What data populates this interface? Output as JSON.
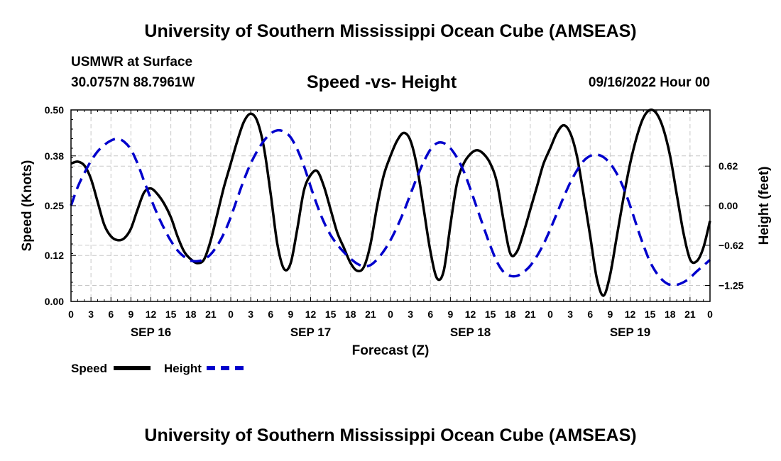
{
  "header": {
    "title": "University of Southern Mississippi Ocean Cube (AMSEAS)",
    "station": "USMWR at Surface",
    "coords": "30.0757N  88.7961W",
    "chart_title": "Speed -vs- Height",
    "datetime": "09/16/2022 Hour 00"
  },
  "footer": {
    "title": "University of Southern Mississippi Ocean Cube (AMSEAS)"
  },
  "legend": {
    "speed_label": "Speed",
    "height_label": "Height"
  },
  "colors": {
    "speed": "#000000",
    "height": "#0000cc",
    "grid": "#c8c8c8"
  },
  "chart_data": {
    "type": "line",
    "title": "Speed -vs- Height",
    "xlabel": "Forecast (Z)",
    "ylabel_left": "Speed (Knots)",
    "ylabel_right": "Height (feet)",
    "x_range_hours": [
      0,
      96
    ],
    "x_tick_hours": [
      0,
      3,
      6,
      9,
      12,
      15,
      18,
      21,
      24,
      27,
      30,
      33,
      36,
      39,
      42,
      45,
      48,
      51,
      54,
      57,
      60,
      63,
      66,
      69,
      72,
      75,
      78,
      81,
      84,
      87,
      90,
      93,
      96
    ],
    "x_tick_labels": [
      "0",
      "3",
      "6",
      "9",
      "12",
      "15",
      "18",
      "21",
      "0",
      "3",
      "6",
      "9",
      "12",
      "15",
      "18",
      "21",
      "0",
      "3",
      "6",
      "9",
      "12",
      "15",
      "18",
      "21",
      "0",
      "3",
      "6",
      "9",
      "12",
      "15",
      "18",
      "21",
      "0"
    ],
    "date_labels": [
      {
        "label": "SEP 16",
        "hour": 12
      },
      {
        "label": "SEP 17",
        "hour": 36
      },
      {
        "label": "SEP 18",
        "hour": 60
      },
      {
        "label": "SEP 19",
        "hour": 84
      }
    ],
    "ylim_left": [
      0,
      0.5
    ],
    "y_ticks_left": [
      0.0,
      0.12,
      0.25,
      0.38,
      0.5
    ],
    "y_tick_labels_left": [
      "0.00",
      "0.12",
      "0.25",
      "0.38",
      "0.50"
    ],
    "ylim_right": [
      -1.5,
      1.5
    ],
    "y_ticks_right": [
      -1.25,
      -0.62,
      0.0,
      0.62
    ],
    "y_tick_labels_right": [
      "−1.25",
      "−0.62",
      "0.00",
      "0.62"
    ],
    "series": [
      {
        "name": "Speed",
        "axis": "left",
        "style": "solid",
        "x": [
          0,
          1,
          2,
          3,
          4,
          5,
          6,
          7,
          8,
          9,
          10,
          11,
          12,
          13,
          14,
          15,
          16,
          17,
          18,
          19,
          20,
          21,
          22,
          23,
          24,
          25,
          26,
          27,
          28,
          29,
          30,
          31,
          32,
          33,
          34,
          35,
          36,
          37,
          38,
          39,
          40,
          41,
          42,
          43,
          44,
          45,
          46,
          47,
          48,
          49,
          50,
          51,
          52,
          53,
          54,
          55,
          56,
          57,
          58,
          59,
          60,
          61,
          62,
          63,
          64,
          65,
          66,
          67,
          68,
          69,
          70,
          71,
          72,
          73,
          74,
          75,
          76,
          77,
          78,
          79,
          80,
          81,
          82,
          83,
          84,
          85,
          86,
          87,
          88,
          89,
          90,
          91,
          92,
          93,
          94,
          95,
          96
        ],
        "values": [
          0.36,
          0.365,
          0.355,
          0.32,
          0.26,
          0.2,
          0.17,
          0.16,
          0.165,
          0.19,
          0.24,
          0.285,
          0.295,
          0.28,
          0.255,
          0.22,
          0.17,
          0.13,
          0.11,
          0.1,
          0.11,
          0.16,
          0.23,
          0.3,
          0.36,
          0.42,
          0.47,
          0.49,
          0.47,
          0.4,
          0.28,
          0.15,
          0.085,
          0.1,
          0.19,
          0.29,
          0.33,
          0.34,
          0.3,
          0.24,
          0.18,
          0.14,
          0.1,
          0.08,
          0.09,
          0.15,
          0.25,
          0.33,
          0.38,
          0.42,
          0.44,
          0.42,
          0.35,
          0.24,
          0.13,
          0.06,
          0.08,
          0.2,
          0.31,
          0.36,
          0.385,
          0.395,
          0.385,
          0.36,
          0.31,
          0.21,
          0.125,
          0.13,
          0.18,
          0.24,
          0.3,
          0.36,
          0.4,
          0.44,
          0.46,
          0.44,
          0.38,
          0.28,
          0.17,
          0.06,
          0.015,
          0.07,
          0.17,
          0.27,
          0.36,
          0.43,
          0.48,
          0.5,
          0.49,
          0.45,
          0.38,
          0.28,
          0.18,
          0.11,
          0.105,
          0.14,
          0.21
        ]
      },
      {
        "name": "Height",
        "axis": "right",
        "style": "dashed",
        "x": [
          0,
          1,
          2,
          3,
          4,
          5,
          6,
          7,
          8,
          9,
          10,
          11,
          12,
          13,
          14,
          15,
          16,
          17,
          18,
          19,
          20,
          21,
          22,
          23,
          24,
          25,
          26,
          27,
          28,
          29,
          30,
          31,
          32,
          33,
          34,
          35,
          36,
          37,
          38,
          39,
          40,
          41,
          42,
          43,
          44,
          45,
          46,
          47,
          48,
          49,
          50,
          51,
          52,
          53,
          54,
          55,
          56,
          57,
          58,
          59,
          60,
          61,
          62,
          63,
          64,
          65,
          66,
          67,
          68,
          69,
          70,
          71,
          72,
          73,
          74,
          75,
          76,
          77,
          78,
          79,
          80,
          81,
          82,
          83,
          84,
          85,
          86,
          87,
          88,
          89,
          90,
          91,
          92,
          93,
          94,
          95,
          96
        ],
        "values": [
          0.0,
          0.29,
          0.51,
          0.7,
          0.85,
          0.95,
          1.02,
          1.05,
          1.0,
          0.88,
          0.66,
          0.38,
          0.11,
          -0.14,
          -0.36,
          -0.55,
          -0.7,
          -0.8,
          -0.86,
          -0.87,
          -0.84,
          -0.76,
          -0.62,
          -0.43,
          -0.18,
          0.12,
          0.41,
          0.66,
          0.86,
          1.02,
          1.13,
          1.18,
          1.16,
          1.07,
          0.88,
          0.62,
          0.3,
          0.0,
          -0.26,
          -0.46,
          -0.61,
          -0.73,
          -0.83,
          -0.91,
          -0.95,
          -0.93,
          -0.84,
          -0.71,
          -0.54,
          -0.33,
          -0.09,
          0.18,
          0.45,
          0.69,
          0.88,
          0.98,
          0.98,
          0.9,
          0.75,
          0.54,
          0.26,
          -0.04,
          -0.34,
          -0.63,
          -0.88,
          -1.04,
          -1.1,
          -1.1,
          -1.04,
          -0.94,
          -0.79,
          -0.6,
          -0.37,
          -0.12,
          0.13,
          0.36,
          0.55,
          0.7,
          0.78,
          0.8,
          0.76,
          0.66,
          0.5,
          0.28,
          0.0,
          -0.32,
          -0.62,
          -0.88,
          -1.06,
          -1.18,
          -1.24,
          -1.24,
          -1.2,
          -1.13,
          -1.03,
          -0.94,
          -0.85
        ]
      }
    ]
  }
}
